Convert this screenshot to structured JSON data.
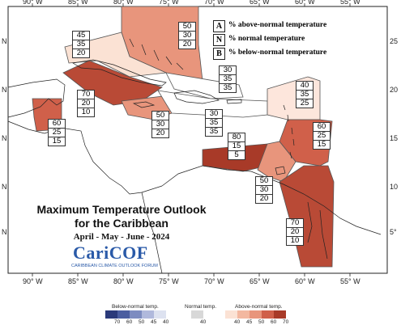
{
  "title_line1": "Maximum Temperature Outlook",
  "title_line2": "for the Caribbean",
  "period": "April - May - June - 2024",
  "logo_text": "CariCOF",
  "logo_subtext": "CARIBBEAN CLIMATE OUTLOOK FORUM",
  "legend": [
    {
      "key": "A",
      "text": "% above-normal temperature"
    },
    {
      "key": "N",
      "text": "% normal temperature"
    },
    {
      "key": "B",
      "text": "% below-normal temperature"
    }
  ],
  "lon_ticks": [
    "90° W",
    "85° W",
    "80° W",
    "75° W",
    "70° W",
    "65° W",
    "60° W",
    "55° W"
  ],
  "lat_ticks_left": [
    "N",
    "N",
    "N",
    "N",
    "N"
  ],
  "lat_ticks_right": [
    "25",
    "20",
    "15",
    "10",
    "5°"
  ],
  "regions": [
    {
      "id": "bahamas",
      "A": "50",
      "N": "30",
      "B": "20",
      "color": "#e8957c"
    },
    {
      "id": "cuba-west",
      "A": "45",
      "N": "35",
      "B": "20",
      "color": "#fbe2d4"
    },
    {
      "id": "cuba-central",
      "A": "70",
      "N": "20",
      "B": "10",
      "color": "#b94a36"
    },
    {
      "id": "belize",
      "A": "60",
      "N": "25",
      "B": "15",
      "color": "#d0604a"
    },
    {
      "id": "jamaica",
      "A": "50",
      "N": "30",
      "B": "20",
      "color": "#e8957c"
    },
    {
      "id": "turks",
      "A": "30",
      "N": "35",
      "B": "35",
      "color": "#ffffff"
    },
    {
      "id": "hispaniola",
      "A": "30",
      "N": "35",
      "B": "35",
      "color": "#ffffff"
    },
    {
      "id": "leewards",
      "A": "40",
      "N": "35",
      "B": "25",
      "color": "#fde6dc"
    },
    {
      "id": "windwards",
      "A": "60",
      "N": "25",
      "B": "15",
      "color": "#d0604a"
    },
    {
      "id": "abc-islands",
      "A": "80",
      "N": "15",
      "B": "5",
      "color": "#a83a28"
    },
    {
      "id": "trinidad",
      "A": "50",
      "N": "30",
      "B": "20",
      "color": "#e8957c"
    },
    {
      "id": "guianas",
      "A": "70",
      "N": "20",
      "B": "10",
      "color": "#b94a36"
    }
  ],
  "colorbar": {
    "below_label": "Below-normal temp.",
    "normal_label": "Normal temp.",
    "above_label": "Above-normal temp.",
    "below_ticks": [
      "70",
      "60",
      "50",
      "45",
      "40"
    ],
    "normal_ticks": [
      "40"
    ],
    "above_ticks": [
      "40",
      "45",
      "50",
      "60",
      "70"
    ],
    "below_colors": [
      "#2b3a7a",
      "#4a5da0",
      "#7d8cc0",
      "#b0b9dc",
      "#dde2f0"
    ],
    "normal_colors": [
      "#d8d8d8"
    ],
    "above_colors": [
      "#fbe2d4",
      "#f3b8a0",
      "#e8957c",
      "#d0604a",
      "#a83a28"
    ]
  }
}
